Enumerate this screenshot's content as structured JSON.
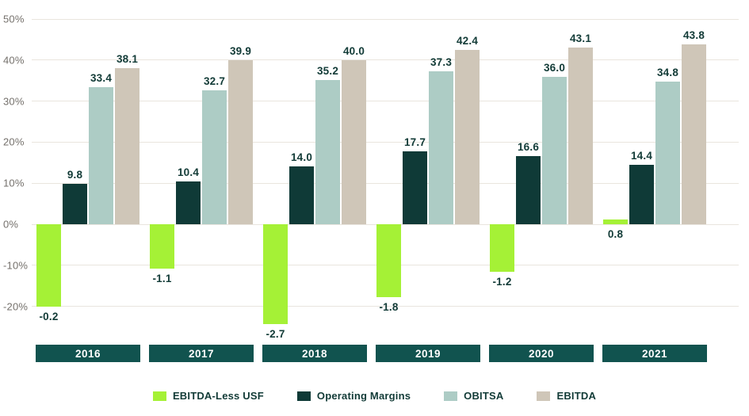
{
  "chart_data": {
    "type": "bar",
    "title": "",
    "categories": [
      "2016",
      "2017",
      "2018",
      "2019",
      "2020",
      "2021"
    ],
    "series": [
      {
        "name": "EBITDA-Less USF",
        "color": "#a5f136",
        "values": [
          -0.2,
          -1.1,
          -2.7,
          -1.8,
          -1.2,
          0.8
        ],
        "bar_extents_pct": [
          -20.0,
          -10.8,
          -24.4,
          -17.8,
          -11.6,
          1.2
        ],
        "label_side": "below"
      },
      {
        "name": "Operating Margins",
        "color": "#0f3a37",
        "values": [
          9.8,
          10.4,
          14.0,
          17.7,
          16.6,
          14.4
        ],
        "label_side": "above"
      },
      {
        "name": "OBITSA",
        "color": "#adccc5",
        "values": [
          33.4,
          32.7,
          35.2,
          37.3,
          36.0,
          34.8
        ],
        "label_side": "above"
      },
      {
        "name": "EBITDA",
        "color": "#cfc6b8",
        "values": [
          38.1,
          39.9,
          40.0,
          42.4,
          43.1,
          43.8
        ],
        "label_side": "above"
      }
    ],
    "y_ticks": [
      "50%",
      "40%",
      "30%",
      "20%",
      "10%",
      "0%",
      "-10%",
      "-20%"
    ],
    "ylim": [
      -25,
      50
    ],
    "grid": true,
    "legend_position": "bottom",
    "xlabel": "",
    "ylabel": ""
  },
  "colors": {
    "background": "#ffffff",
    "gridline": "#e9e5de",
    "tick_text": "#75716c",
    "value_label_text": "#123b37",
    "category_box_bg": "#11534f",
    "category_box_text": "#ffffff",
    "legend_text": "#123b37"
  }
}
